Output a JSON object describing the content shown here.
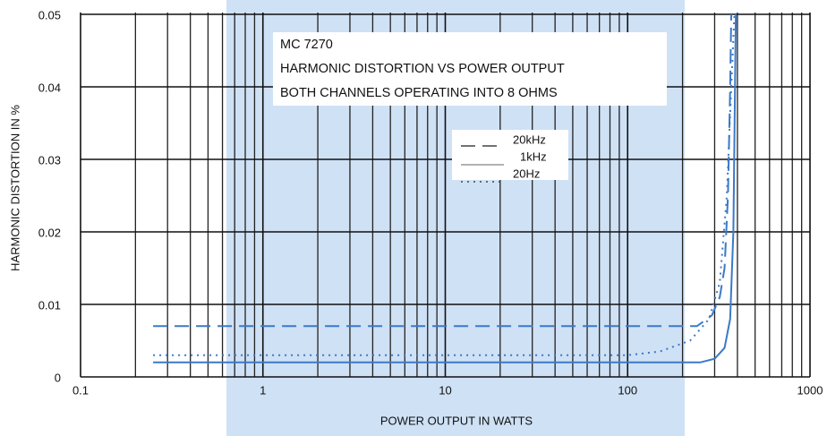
{
  "chart_data": {
    "type": "line",
    "title_lines": [
      "MC 7270",
      "HARMONIC DISTORTION VS POWER OUTPUT",
      "BOTH CHANNELS OPERATING INTO 8 OHMS"
    ],
    "x_label": "POWER OUTPUT IN WATTS",
    "y_label": "HARMONIC DISTORTION IN %",
    "x_scale": "log",
    "grid": true,
    "xlim": [
      0.1,
      1000
    ],
    "xticks": [
      0.1,
      1,
      10,
      100,
      1000
    ],
    "ylim": [
      0,
      0.05
    ],
    "yticks": [
      0,
      0.01,
      0.02,
      0.03,
      0.04,
      0.05
    ],
    "series": [
      {
        "name": "20kHz",
        "color": "#3b79c8",
        "linestyle": "dashed",
        "x": [
          0.25,
          1,
          10,
          100,
          240,
          290,
          320,
          340,
          355,
          365,
          370
        ],
        "values": [
          0.007,
          0.007,
          0.007,
          0.007,
          0.007,
          0.0085,
          0.011,
          0.015,
          0.025,
          0.04,
          0.05
        ]
      },
      {
        "name": "1kHz",
        "color": "#3b79c8",
        "linestyle": "solid",
        "x": [
          0.25,
          1,
          10,
          100,
          250,
          300,
          340,
          365,
          380,
          388,
          392
        ],
        "values": [
          0.002,
          0.002,
          0.002,
          0.002,
          0.002,
          0.0025,
          0.004,
          0.008,
          0.02,
          0.04,
          0.05
        ]
      },
      {
        "name": "20Hz",
        "color": "#3b79c8",
        "linestyle": "dotted",
        "x": [
          0.25,
          1,
          10,
          100,
          150,
          220,
          280,
          320,
          350,
          370,
          385
        ],
        "values": [
          0.003,
          0.003,
          0.003,
          0.003,
          0.0035,
          0.005,
          0.008,
          0.013,
          0.025,
          0.04,
          0.05
        ]
      }
    ]
  }
}
